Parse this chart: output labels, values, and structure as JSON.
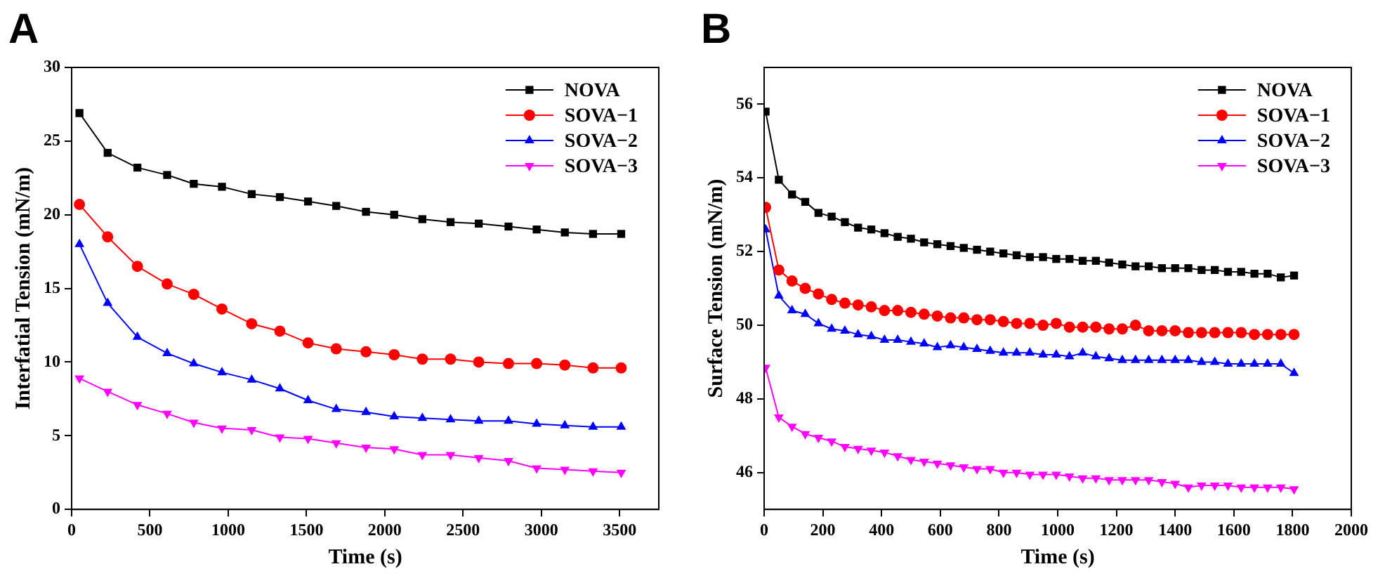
{
  "chart_data": [
    {
      "type": "line",
      "title": "A",
      "xlabel": "Time (s)",
      "ylabel": "Interfatial Tension (mN/m)",
      "xlim": [
        0,
        3750
      ],
      "xticks": [
        0,
        500,
        1000,
        1500,
        2000,
        2500,
        3000,
        3500
      ],
      "ylim": [
        0,
        30
      ],
      "yticks": [
        0,
        5,
        10,
        15,
        20,
        25,
        30
      ],
      "grid": false,
      "legend": "top right",
      "x": [
        50,
        230,
        420,
        610,
        780,
        960,
        1150,
        1330,
        1510,
        1690,
        1880,
        2060,
        2240,
        2420,
        2600,
        2790,
        2970,
        3150,
        3330,
        3510
      ],
      "series": [
        {
          "name": "NOVA",
          "color": "#000000",
          "marker": "square",
          "values": [
            26.9,
            24.2,
            23.2,
            22.7,
            22.1,
            21.9,
            21.4,
            21.2,
            20.9,
            20.6,
            20.2,
            20.0,
            19.7,
            19.5,
            19.4,
            19.2,
            19.0,
            18.8,
            18.7,
            18.7
          ]
        },
        {
          "name": "SOVA−1",
          "color": "#ff0000",
          "marker": "circle",
          "values": [
            20.7,
            18.5,
            16.5,
            15.3,
            14.6,
            13.6,
            12.6,
            12.1,
            11.3,
            10.9,
            10.7,
            10.5,
            10.2,
            10.2,
            10.0,
            9.9,
            9.9,
            9.8,
            9.6,
            9.6
          ]
        },
        {
          "name": "SOVA−2",
          "color": "#0000ff",
          "marker": "triangle",
          "values": [
            18.0,
            14.0,
            11.7,
            10.6,
            9.9,
            9.3,
            8.8,
            8.2,
            7.4,
            6.8,
            6.6,
            6.3,
            6.2,
            6.1,
            6.0,
            6.0,
            5.8,
            5.7,
            5.6,
            5.6
          ]
        },
        {
          "name": "SOVA−3",
          "color": "#ff00ff",
          "marker": "triangle-down",
          "values": [
            8.9,
            8.0,
            7.1,
            6.5,
            5.9,
            5.5,
            5.4,
            4.9,
            4.8,
            4.5,
            4.2,
            4.1,
            3.7,
            3.7,
            3.5,
            3.3,
            2.8,
            2.7,
            2.6,
            2.5
          ]
        }
      ]
    },
    {
      "type": "line",
      "title": "B",
      "xlabel": "Time (s)",
      "ylabel": "Surface Tension (mN/m)",
      "xlim": [
        0,
        2000
      ],
      "xticks": [
        0,
        200,
        400,
        600,
        800,
        1000,
        1200,
        1400,
        1600,
        1800,
        2000
      ],
      "ylim": [
        45,
        57
      ],
      "yticks": [
        46,
        48,
        50,
        52,
        54,
        56
      ],
      "grid": false,
      "legend": "top right",
      "x": [
        5,
        50,
        95,
        140,
        185,
        230,
        275,
        320,
        365,
        410,
        455,
        500,
        545,
        590,
        635,
        680,
        725,
        770,
        815,
        860,
        905,
        950,
        995,
        1040,
        1085,
        1130,
        1175,
        1220,
        1265,
        1310,
        1355,
        1400,
        1445,
        1490,
        1535,
        1580,
        1625,
        1670,
        1715,
        1760,
        1805
      ],
      "series": [
        {
          "name": "NOVA",
          "color": "#000000",
          "marker": "square",
          "values": [
            55.8,
            53.95,
            53.55,
            53.35,
            53.05,
            52.95,
            52.8,
            52.65,
            52.6,
            52.5,
            52.4,
            52.35,
            52.25,
            52.2,
            52.15,
            52.1,
            52.05,
            52.0,
            51.95,
            51.9,
            51.85,
            51.85,
            51.8,
            51.8,
            51.75,
            51.75,
            51.7,
            51.65,
            51.6,
            51.6,
            51.55,
            51.55,
            51.55,
            51.5,
            51.5,
            51.45,
            51.45,
            51.4,
            51.4,
            51.3,
            51.35
          ]
        },
        {
          "name": "SOVA−1",
          "color": "#ff0000",
          "marker": "circle",
          "values": [
            53.2,
            51.5,
            51.2,
            51.0,
            50.85,
            50.7,
            50.6,
            50.55,
            50.5,
            50.4,
            50.4,
            50.35,
            50.3,
            50.25,
            50.2,
            50.2,
            50.15,
            50.15,
            50.1,
            50.05,
            50.05,
            50.0,
            50.05,
            49.95,
            49.95,
            49.95,
            49.9,
            49.9,
            50.0,
            49.85,
            49.85,
            49.85,
            49.8,
            49.8,
            49.8,
            49.8,
            49.8,
            49.75,
            49.75,
            49.75,
            49.75
          ]
        },
        {
          "name": "SOVA−2",
          "color": "#0000ff",
          "marker": "triangle",
          "values": [
            52.6,
            50.8,
            50.4,
            50.3,
            50.05,
            49.9,
            49.85,
            49.75,
            49.7,
            49.6,
            49.6,
            49.55,
            49.5,
            49.4,
            49.45,
            49.4,
            49.35,
            49.3,
            49.25,
            49.25,
            49.25,
            49.2,
            49.2,
            49.15,
            49.25,
            49.15,
            49.1,
            49.05,
            49.05,
            49.05,
            49.05,
            49.05,
            49.05,
            49.0,
            49.0,
            48.95,
            48.95,
            48.95,
            48.95,
            48.95,
            48.7
          ]
        },
        {
          "name": "SOVA−3",
          "color": "#ff00ff",
          "marker": "triangle-down",
          "values": [
            48.85,
            47.5,
            47.25,
            47.05,
            46.95,
            46.85,
            46.7,
            46.65,
            46.6,
            46.55,
            46.45,
            46.35,
            46.3,
            46.25,
            46.2,
            46.15,
            46.1,
            46.1,
            46.0,
            46.0,
            45.95,
            45.95,
            45.95,
            45.9,
            45.85,
            45.85,
            45.8,
            45.8,
            45.8,
            45.8,
            45.75,
            45.7,
            45.6,
            45.65,
            45.65,
            45.65,
            45.6,
            45.6,
            45.6,
            45.6,
            45.55
          ]
        }
      ]
    }
  ]
}
